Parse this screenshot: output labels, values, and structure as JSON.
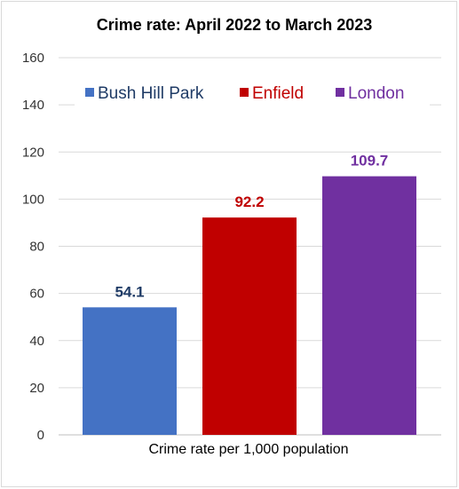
{
  "chart_data": {
    "type": "bar",
    "title": "Crime rate: April 2022 to March 2023",
    "xlabel": "",
    "ylabel": "",
    "categories": [
      "Crime rate per 1,000 population"
    ],
    "series": [
      {
        "name": "Bush Hill Park",
        "values": [
          54.1
        ],
        "color": "#4472c4",
        "label_color": "#1f3b66"
      },
      {
        "name": "Enfield",
        "values": [
          92.2
        ],
        "color": "#c00000",
        "label_color": "#c00000"
      },
      {
        "name": "London",
        "values": [
          109.7
        ],
        "color": "#7030a0",
        "label_color": "#7030a0"
      }
    ],
    "ylim": [
      0,
      160
    ],
    "yticks": [
      0,
      20,
      40,
      60,
      80,
      100,
      120,
      140,
      160
    ],
    "grid": true,
    "legend_position": "top"
  }
}
